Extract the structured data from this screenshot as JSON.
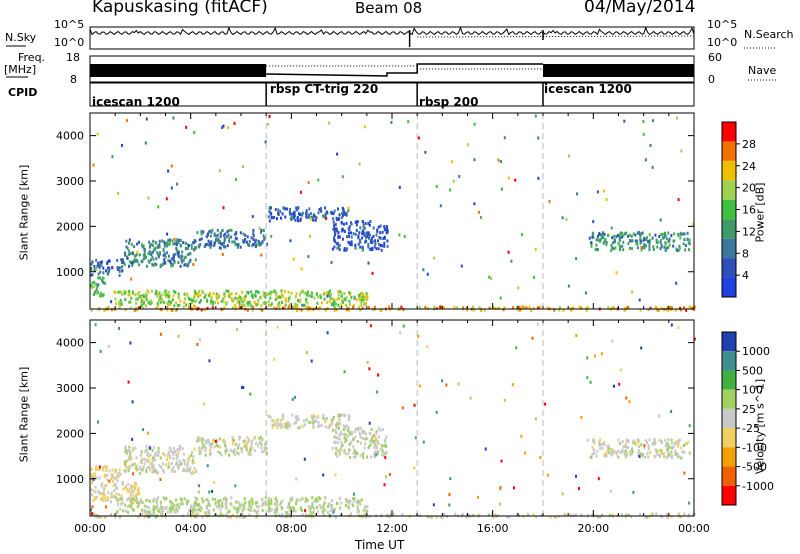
{
  "header": {
    "radar": "Kapuskasing (fitACF)",
    "beam": "Beam 08",
    "date": "04/May/2014"
  },
  "status_panels": {
    "nsky_label": "N.Sky",
    "nsearch_label": "N.Search",
    "noise_ticks": [
      "10^5",
      "10^0"
    ],
    "freq_label": "Freq.",
    "freq_unit": "[MHz]",
    "freq_ticks": [
      "18",
      "8"
    ],
    "nave_label": "Nave",
    "nave_ticks": [
      "60",
      "0"
    ],
    "cpid_label": "CPID",
    "modes": [
      {
        "name": "icescan 1200",
        "start_h": 0,
        "end_h": 7
      },
      {
        "name": "rbsp CT-trig 220",
        "start_h": 7,
        "end_h": 13
      },
      {
        "name": "rbsp 200",
        "start_h": 13,
        "end_h": 18
      },
      {
        "name": "icescan 1200",
        "start_h": 18,
        "end_h": 24
      }
    ]
  },
  "colors": {
    "power": [
      "#1f3fe0",
      "#2f4fb8",
      "#3a7a9a",
      "#3f9a6a",
      "#3fbf3f",
      "#9fd04f",
      "#f0c000",
      "#f07000",
      "#ff0000"
    ],
    "velocity": [
      "#ff0000",
      "#f06000",
      "#f0a000",
      "#f0d060",
      "#c8c8c8",
      "#a0d060",
      "#40b040",
      "#3f8f8f",
      "#2040b0"
    ]
  },
  "chart_data": {
    "type": "heatmap",
    "x_axis": {
      "label": "Time UT",
      "range_hours": [
        0,
        24
      ],
      "ticks": [
        "00:00",
        "04:00",
        "08:00",
        "12:00",
        "16:00",
        "20:00",
        "00:00"
      ]
    },
    "y_axis": {
      "label": "Slant Range [km]",
      "range": [
        180,
        4500
      ],
      "ticks": [
        1000,
        2000,
        3000,
        4000
      ]
    },
    "panels": [
      {
        "name": "power",
        "colorbar_label": "Power [dB]",
        "colorbar_ticks": [
          4,
          8,
          12,
          16,
          20,
          24,
          28
        ],
        "range": [
          0,
          32
        ],
        "regions": [
          {
            "t": [
              0.0,
              1.3
            ],
            "r": [
              950,
              1300
            ],
            "v": 7
          },
          {
            "t": [
              0.0,
              0.6
            ],
            "r": [
              500,
              900
            ],
            "v": 14
          },
          {
            "t": [
              1.3,
              4.2
            ],
            "r": [
              1150,
              1750
            ],
            "v": 10
          },
          {
            "t": [
              4.2,
              7.0
            ],
            "r": [
              1550,
              1950
            ],
            "v": 8
          },
          {
            "t": [
              0.9,
              11.0
            ],
            "r": [
              280,
              620
            ],
            "v": 19
          },
          {
            "t": [
              7.0,
              10.3
            ],
            "r": [
              2150,
              2450
            ],
            "v": 6
          },
          {
            "t": [
              9.6,
              11.8
            ],
            "r": [
              1500,
              2150
            ],
            "v": 5
          },
          {
            "t": [
              19.8,
              23.8
            ],
            "r": [
              1500,
              1900
            ],
            "v": 11
          },
          {
            "t": [
              0.0,
              24.0
            ],
            "r": [
              180,
              260
            ],
            "v": 24
          }
        ]
      },
      {
        "name": "velocity",
        "colorbar_label": "Velocity [m s^-1]",
        "colorbar_ticks": [
          1000,
          500,
          100,
          25,
          -25,
          -100,
          -500,
          -1000
        ],
        "range": [
          -1200,
          1200
        ],
        "regions": [
          {
            "t": [
              0.0,
              1.3
            ],
            "r": [
              950,
              1300
            ],
            "v": -180
          },
          {
            "t": [
              0.0,
              2.0
            ],
            "r": [
              500,
              950
            ],
            "v": -120
          },
          {
            "t": [
              1.3,
              4.2
            ],
            "r": [
              1150,
              1750
            ],
            "v": 0
          },
          {
            "t": [
              4.2,
              7.0
            ],
            "r": [
              1550,
              1950
            ],
            "v": 0
          },
          {
            "t": [
              1.0,
              11.0
            ],
            "r": [
              280,
              620
            ],
            "v": 160
          },
          {
            "t": [
              7.0,
              10.3
            ],
            "r": [
              2150,
              2450
            ],
            "v": 0
          },
          {
            "t": [
              9.6,
              11.8
            ],
            "r": [
              1500,
              2150
            ],
            "v": 60
          },
          {
            "t": [
              19.8,
              23.8
            ],
            "r": [
              1500,
              1900
            ],
            "v": 0
          },
          {
            "t": [
              0.0,
              24.0
            ],
            "r": [
              180,
              260
            ],
            "v": 0
          }
        ]
      }
    ]
  }
}
